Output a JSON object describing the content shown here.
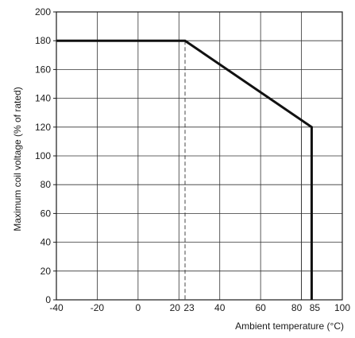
{
  "chart_data": {
    "type": "line",
    "xlabel": "Ambient temperature (°C)",
    "ylabel": "Maximum coil voltage (% of rated)",
    "xlim": [
      -40,
      100
    ],
    "ylim": [
      0,
      200
    ],
    "x_ticks": [
      -40,
      -20,
      0,
      20,
      23,
      40,
      60,
      80,
      85,
      100
    ],
    "y_ticks": [
      0,
      20,
      40,
      60,
      80,
      100,
      120,
      140,
      160,
      180,
      200
    ],
    "grid": true,
    "series": [
      {
        "x": [
          -40,
          23,
          85,
          85
        ],
        "y": [
          180,
          180,
          120,
          0
        ]
      }
    ],
    "reference_lines": [
      {
        "axis": "x",
        "value": 23,
        "style": "dashed"
      },
      {
        "axis": "x",
        "value": 80,
        "style": "thin"
      }
    ]
  }
}
